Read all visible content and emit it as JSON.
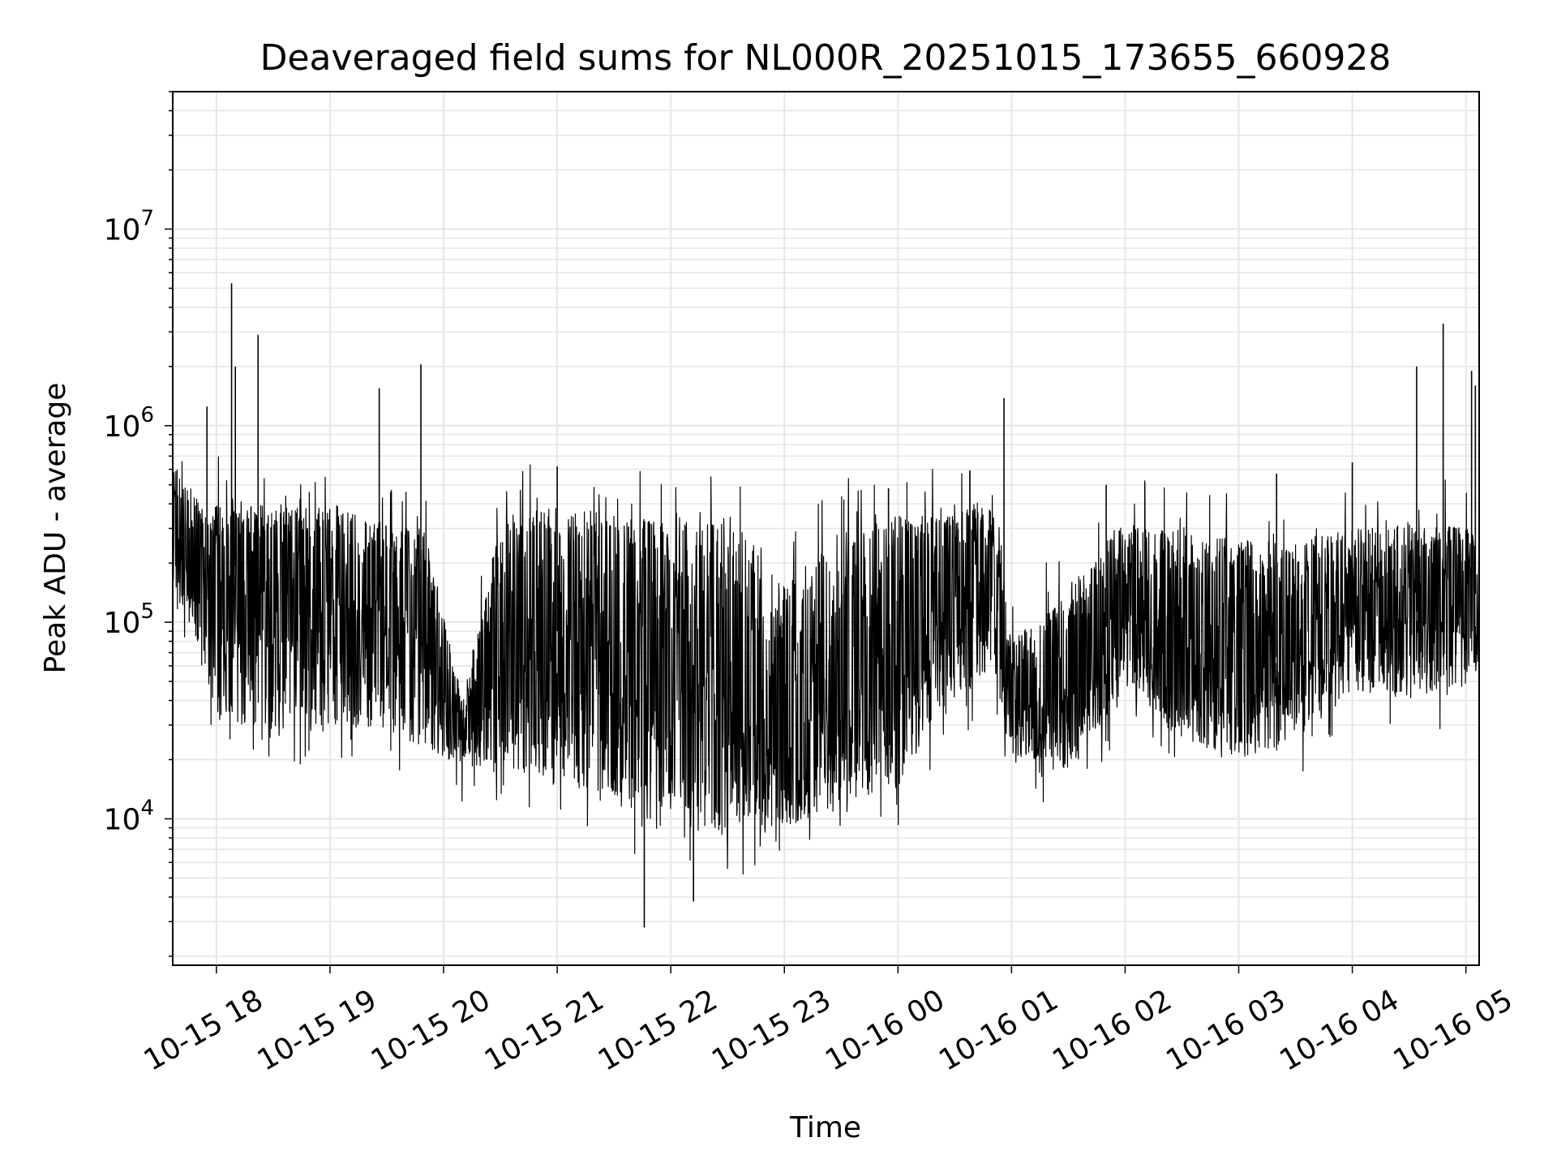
{
  "chart_data": {
    "type": "line",
    "title": "Deaveraged field sums for NL000R_20251015_173655_660928",
    "xlabel": "Time",
    "ylabel": "Peak ADU - average",
    "y_scale": "log",
    "ylim": [
      1800,
      50000000
    ],
    "xlim": [
      "2025-10-15 17:36:55",
      "2025-10-16 05:07:00"
    ],
    "x_tick_labels": [
      "10-15 18",
      "10-15 19",
      "10-15 20",
      "10-15 21",
      "10-15 22",
      "10-15 23",
      "10-16 00",
      "10-16 01",
      "10-16 02",
      "10-16 03",
      "10-16 04",
      "10-16 05"
    ],
    "x_ticks": [
      "2025-10-15 18:00",
      "2025-10-15 19:00",
      "2025-10-15 20:00",
      "2025-10-15 21:00",
      "2025-10-15 22:00",
      "2025-10-15 23:00",
      "2025-10-16 00:00",
      "2025-10-16 01:00",
      "2025-10-16 02:00",
      "2025-10-16 03:00",
      "2025-10-16 04:00",
      "2025-10-16 05:00"
    ],
    "y_tick_labels": [
      {
        "base": "10",
        "exp": "4",
        "value": 10000
      },
      {
        "base": "10",
        "exp": "5",
        "value": 100000
      },
      {
        "base": "10",
        "exp": "6",
        "value": 1000000
      },
      {
        "base": "10",
        "exp": "7",
        "value": 10000000
      }
    ],
    "grid": true,
    "line_color": "#000000",
    "series": [
      {
        "envelope": {
          "x": [
            "2025-10-15 17:37",
            "2025-10-15 17:50",
            "2025-10-15 18:00",
            "2025-10-15 18:30",
            "2025-10-15 19:00",
            "2025-10-15 19:30",
            "2025-10-15 19:50",
            "2025-10-15 20:10",
            "2025-10-15 20:30",
            "2025-10-15 21:00",
            "2025-10-15 21:30",
            "2025-10-15 21:50",
            "2025-10-15 22:10",
            "2025-10-15 22:40",
            "2025-10-15 23:00",
            "2025-10-15 23:30",
            "2025-10-16 00:00",
            "2025-10-16 00:30",
            "2025-10-16 00:50",
            "2025-10-16 01:00",
            "2025-10-16 01:30",
            "2025-10-16 02:00",
            "2025-10-16 02:30",
            "2025-10-16 03:00",
            "2025-10-16 03:30",
            "2025-10-16 04:00",
            "2025-10-16 04:30",
            "2025-10-16 05:06"
          ],
          "low": [
            150000,
            80000,
            30000,
            28000,
            30000,
            28000,
            22000,
            19000,
            17000,
            17000,
            12000,
            9000,
            9000,
            8000,
            9000,
            12000,
            14000,
            40000,
            55000,
            20000,
            18000,
            45000,
            25000,
            20000,
            25000,
            45000,
            40000,
            50000
          ],
          "high": [
            650000,
            450000,
            400000,
            400000,
            380000,
            330000,
            300000,
            40000,
            350000,
            380000,
            370000,
            330000,
            350000,
            340000,
            150000,
            300000,
            350000,
            350000,
            450000,
            80000,
            150000,
            320000,
            300000,
            260000,
            260000,
            300000,
            320000,
            300000
          ],
          "median": [
            300000,
            200000,
            200000,
            180000,
            170000,
            150000,
            120000,
            30000,
            60000,
            90000,
            70000,
            50000,
            60000,
            70000,
            30000,
            40000,
            100000,
            150000,
            200000,
            35000,
            50000,
            130000,
            80000,
            60000,
            70000,
            120000,
            110000,
            140000
          ]
        },
        "spikes": {
          "x": [
            "2025-10-15 17:55",
            "2025-10-15 18:08",
            "2025-10-15 18:10",
            "2025-10-15 18:22",
            "2025-10-15 19:26",
            "2025-10-15 19:48",
            "2025-10-15 21:00",
            "2025-10-15 23:55",
            "2025-10-16 00:38",
            "2025-10-16 00:56",
            "2025-10-16 04:34",
            "2025-10-16 04:48",
            "2025-10-16 05:03",
            "2025-10-16 05:05",
            "2025-10-15 21:46",
            "2025-10-15 22:12",
            "2025-10-16 01:50",
            "2025-10-16 03:20",
            "2025-10-16 04:00"
          ],
          "y": [
            1250000,
            5300000,
            2000000,
            2900000,
            1550000,
            2050000,
            620000,
            480000,
            590000,
            1380000,
            2000000,
            3300000,
            1900000,
            1600000,
            2800,
            3800,
            500000,
            570000,
            650000
          ]
        }
      }
    ]
  }
}
